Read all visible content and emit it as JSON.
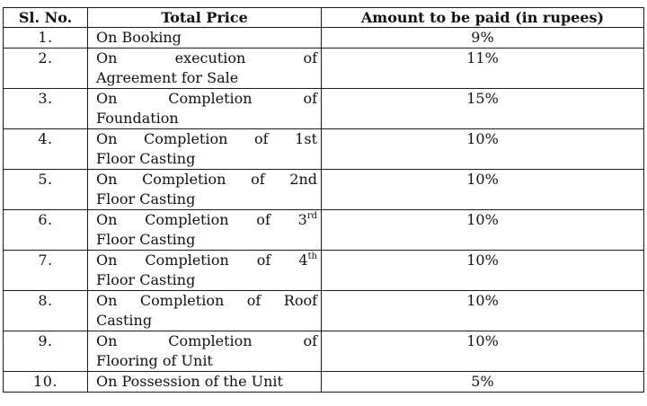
{
  "table": {
    "headers": {
      "sl_no": "Sl. No.",
      "total_price": "Total Price",
      "amount": "Amount to be paid (in rupees)"
    },
    "rows": [
      {
        "sl": "1.",
        "line1": "On Booking",
        "line2": "",
        "amount": "9%"
      },
      {
        "sl": "2.",
        "line1": "On execution of",
        "line2": "Agreement for Sale",
        "amount": "11%"
      },
      {
        "sl": "3.",
        "line1": "On Completion of",
        "line2": "Foundation",
        "amount": "15%"
      },
      {
        "sl": "4.",
        "line1": "On Completion of 1st",
        "line2": "Floor Casting",
        "amount": "10%"
      },
      {
        "sl": "5.",
        "line1": "On Completion of 2nd",
        "line2": "Floor Casting",
        "amount": "10%"
      },
      {
        "sl": "6.",
        "line1_pre": "On Completion of 3",
        "line1_sup": "rd",
        "line2": "Floor Casting",
        "amount": "10%"
      },
      {
        "sl": "7.",
        "line1_pre": "On Completion of 4",
        "line1_sup": "th",
        "line2": "Floor Casting",
        "amount": "10%"
      },
      {
        "sl": "8.",
        "line1": "On Completion of Roof",
        "line2": "Casting",
        "amount": "10%"
      },
      {
        "sl": "9.",
        "line1": "On Completion of",
        "line2": "Flooring of Unit",
        "amount": "10%"
      },
      {
        "sl": "10.",
        "line1": "On Possession of the Unit",
        "line2": "",
        "amount": "5%"
      }
    ]
  }
}
